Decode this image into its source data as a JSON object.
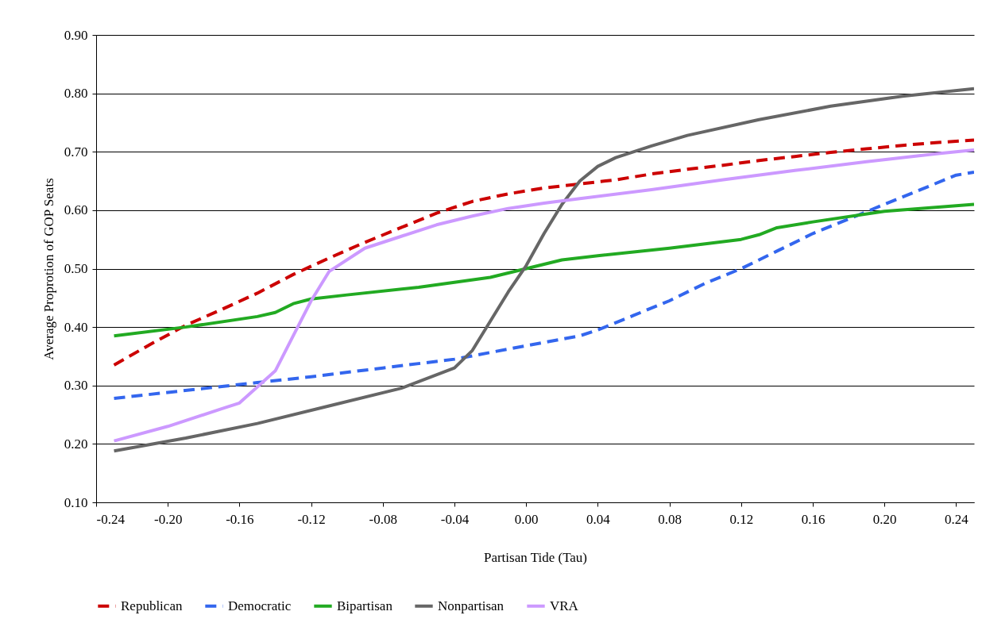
{
  "chart_data": {
    "type": "line",
    "xlabel": "Partisan Tide (Tau)",
    "ylabel": "Average Proprotion of GOP Seats",
    "xlim": [
      -0.24,
      0.25
    ],
    "ylim": [
      0.1,
      0.9
    ],
    "xticks": [
      {
        "value": -0.24,
        "label": "-0.24"
      },
      {
        "value": -0.2,
        "label": "-0.20"
      },
      {
        "value": -0.16,
        "label": "-0.16"
      },
      {
        "value": -0.12,
        "label": "-0.12"
      },
      {
        "value": -0.08,
        "label": "-0.08"
      },
      {
        "value": -0.04,
        "label": "-0.04"
      },
      {
        "value": 0,
        "label": "0.00"
      },
      {
        "value": 0.04,
        "label": "0.04"
      },
      {
        "value": 0.08,
        "label": "0.08"
      },
      {
        "value": 0.12,
        "label": "0.12"
      },
      {
        "value": 0.16,
        "label": "0.16"
      },
      {
        "value": 0.2,
        "label": "0.20"
      },
      {
        "value": 0.24,
        "label": "0.24"
      }
    ],
    "yticks": [
      {
        "value": 0.1,
        "label": "0.10"
      },
      {
        "value": 0.2,
        "label": "0.20"
      },
      {
        "value": 0.3,
        "label": "0.30"
      },
      {
        "value": 0.4,
        "label": "0.40"
      },
      {
        "value": 0.5,
        "label": "0.50"
      },
      {
        "value": 0.6,
        "label": "0.60"
      },
      {
        "value": 0.7,
        "label": "0.70"
      },
      {
        "value": 0.8,
        "label": "0.80"
      },
      {
        "value": 0.9,
        "label": "0.90"
      }
    ],
    "grid": "y",
    "legend": "bottom",
    "series": [
      {
        "name": "Republican",
        "color": "#cc0000",
        "line_style": "dashed",
        "x": [
          -0.23,
          -0.21,
          -0.19,
          -0.17,
          -0.15,
          -0.13,
          -0.11,
          -0.09,
          -0.07,
          -0.05,
          -0.03,
          -0.01,
          0.01,
          0.03,
          0.05,
          0.07,
          0.09,
          0.11,
          0.13,
          0.15,
          0.17,
          0.19,
          0.21,
          0.23,
          0.25
        ],
        "values": [
          0.335,
          0.37,
          0.403,
          0.43,
          0.458,
          0.49,
          0.518,
          0.545,
          0.57,
          0.595,
          0.615,
          0.628,
          0.638,
          0.645,
          0.652,
          0.662,
          0.67,
          0.677,
          0.685,
          0.692,
          0.699,
          0.705,
          0.711,
          0.716,
          0.72
        ]
      },
      {
        "name": "Democratic",
        "color": "#3366ee",
        "line_style": "dashed",
        "x": [
          -0.23,
          -0.15,
          -0.12,
          -0.08,
          -0.04,
          0,
          0.03,
          0.04,
          0.06,
          0.08,
          0.1,
          0.12,
          0.14,
          0.16,
          0.18,
          0.2,
          0.22,
          0.24,
          0.25
        ],
        "values": [
          0.278,
          0.305,
          0.315,
          0.33,
          0.345,
          0.368,
          0.385,
          0.395,
          0.42,
          0.445,
          0.475,
          0.5,
          0.53,
          0.56,
          0.585,
          0.61,
          0.635,
          0.66,
          0.665
        ]
      },
      {
        "name": "Bipartisan",
        "color": "#22aa22",
        "line_style": "solid",
        "x": [
          -0.23,
          -0.19,
          -0.15,
          -0.14,
          -0.13,
          -0.12,
          -0.1,
          -0.06,
          -0.02,
          0,
          0.02,
          0.04,
          0.08,
          0.12,
          0.13,
          0.14,
          0.16,
          0.2,
          0.25
        ],
        "values": [
          0.385,
          0.4,
          0.418,
          0.425,
          0.44,
          0.448,
          0.455,
          0.468,
          0.485,
          0.5,
          0.515,
          0.522,
          0.535,
          0.55,
          0.558,
          0.57,
          0.58,
          0.598,
          0.61
        ]
      },
      {
        "name": "Nonpartisan",
        "color": "#666666",
        "line_style": "solid",
        "x": [
          -0.23,
          -0.19,
          -0.15,
          -0.11,
          -0.07,
          -0.04,
          -0.03,
          -0.02,
          -0.01,
          0,
          0.01,
          0.02,
          0.03,
          0.04,
          0.05,
          0.07,
          0.09,
          0.13,
          0.17,
          0.21,
          0.25
        ],
        "values": [
          0.188,
          0.21,
          0.235,
          0.265,
          0.295,
          0.33,
          0.36,
          0.41,
          0.46,
          0.505,
          0.56,
          0.61,
          0.65,
          0.675,
          0.69,
          0.71,
          0.728,
          0.755,
          0.778,
          0.795,
          0.808
        ]
      },
      {
        "name": "VRA",
        "color": "#cc99ff",
        "line_style": "solid",
        "x": [
          -0.23,
          -0.2,
          -0.17,
          -0.16,
          -0.14,
          -0.13,
          -0.12,
          -0.11,
          -0.09,
          -0.07,
          -0.05,
          -0.03,
          -0.01,
          0.01,
          0.03,
          0.07,
          0.11,
          0.15,
          0.19,
          0.23,
          0.25
        ],
        "values": [
          0.205,
          0.23,
          0.26,
          0.27,
          0.325,
          0.385,
          0.445,
          0.495,
          0.535,
          0.555,
          0.575,
          0.59,
          0.603,
          0.612,
          0.62,
          0.635,
          0.652,
          0.668,
          0.683,
          0.697,
          0.703
        ]
      }
    ]
  }
}
